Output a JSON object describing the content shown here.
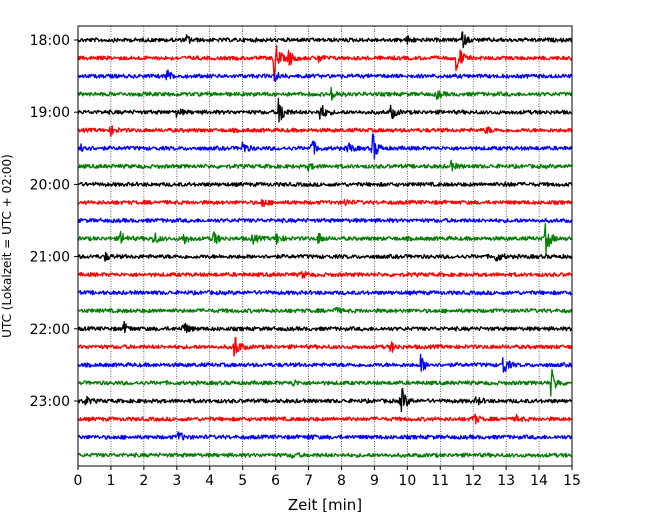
{
  "chart_data": {
    "type": "line",
    "title": "",
    "xlabel": "Zeit  [min]",
    "ylabel": "UTC (Lokalzeit = UTC + 02:00)",
    "xlim": [
      0,
      15
    ],
    "x_ticks": [
      "0",
      "1",
      "2",
      "3",
      "4",
      "5",
      "6",
      "7",
      "8",
      "9",
      "10",
      "11",
      "12",
      "13",
      "14",
      "15"
    ],
    "y_ticks": [
      "18:00",
      "19:00",
      "20:00",
      "21:00",
      "22:00",
      "23:00"
    ],
    "grid": "vertical-dotted",
    "trace_colors": [
      "#000000",
      "#ff0000",
      "#0000ff",
      "#008000"
    ],
    "traces": [
      {
        "start": "18:00",
        "color": "#000000",
        "events": [
          [
            3.3,
            0.4
          ],
          [
            10.0,
            0.35
          ],
          [
            11.65,
            0.8
          ]
        ]
      },
      {
        "start": "18:15",
        "color": "#ff0000",
        "events": [
          [
            5.95,
            2.2
          ],
          [
            6.4,
            0.8
          ],
          [
            11.5,
            1.8
          ],
          [
            7.3,
            0.4
          ]
        ]
      },
      {
        "start": "18:30",
        "color": "#0000ff",
        "events": [
          [
            2.7,
            0.6
          ],
          [
            6.0,
            0.4
          ]
        ]
      },
      {
        "start": "18:45",
        "color": "#008000",
        "events": [
          [
            7.7,
            0.6
          ],
          [
            10.9,
            0.4
          ]
        ]
      },
      {
        "start": "19:00",
        "color": "#000000",
        "events": [
          [
            6.1,
            1.6
          ],
          [
            7.35,
            1.0
          ],
          [
            9.5,
            0.7
          ],
          [
            3.0,
            0.4
          ]
        ]
      },
      {
        "start": "19:15",
        "color": "#ff0000",
        "events": [
          [
            1.0,
            0.4
          ],
          [
            12.4,
            0.3
          ]
        ]
      },
      {
        "start": "19:30",
        "color": "#0000ff",
        "events": [
          [
            0.1,
            0.6
          ],
          [
            5.0,
            0.6
          ],
          [
            7.1,
            0.8
          ],
          [
            8.2,
            0.6
          ],
          [
            8.95,
            1.4
          ]
        ]
      },
      {
        "start": "19:45",
        "color": "#008000",
        "events": [
          [
            11.3,
            0.5
          ],
          [
            7.0,
            0.3
          ]
        ]
      },
      {
        "start": "20:00",
        "color": "#000000",
        "events": [
          [
            13.0,
            0.2
          ]
        ]
      },
      {
        "start": "20:15",
        "color": "#ff0000",
        "events": [
          [
            5.6,
            0.4
          ],
          [
            8.1,
            0.3
          ]
        ]
      },
      {
        "start": "20:30",
        "color": "#0000ff",
        "events": []
      },
      {
        "start": "20:45",
        "color": "#008000",
        "events": [
          [
            1.3,
            0.6
          ],
          [
            2.3,
            0.6
          ],
          [
            3.2,
            0.6
          ],
          [
            4.1,
            0.8
          ],
          [
            5.3,
            0.5
          ],
          [
            6.0,
            0.6
          ],
          [
            7.3,
            0.5
          ],
          [
            14.2,
            1.5
          ]
        ]
      },
      {
        "start": "21:00",
        "color": "#000000",
        "events": [
          [
            0.8,
            0.4
          ],
          [
            12.7,
            0.5
          ]
        ]
      },
      {
        "start": "21:15",
        "color": "#ff0000",
        "events": [
          [
            6.8,
            0.3
          ]
        ]
      },
      {
        "start": "21:30",
        "color": "#0000ff",
        "events": []
      },
      {
        "start": "21:45",
        "color": "#008000",
        "events": [
          [
            7.8,
            0.3
          ]
        ]
      },
      {
        "start": "22:00",
        "color": "#000000",
        "events": [
          [
            1.4,
            0.5
          ],
          [
            3.2,
            0.7
          ]
        ]
      },
      {
        "start": "22:15",
        "color": "#ff0000",
        "events": [
          [
            4.75,
            1.3
          ],
          [
            9.5,
            0.5
          ]
        ]
      },
      {
        "start": "22:30",
        "color": "#0000ff",
        "events": [
          [
            10.4,
            0.9
          ],
          [
            12.9,
            1.1
          ]
        ]
      },
      {
        "start": "22:45",
        "color": "#008000",
        "events": [
          [
            6.5,
            0.3
          ],
          [
            14.35,
            1.6
          ]
        ]
      },
      {
        "start": "23:00",
        "color": "#000000",
        "events": [
          [
            0.2,
            0.5
          ],
          [
            9.8,
            1.6
          ],
          [
            12.1,
            0.4
          ]
        ]
      },
      {
        "start": "23:15",
        "color": "#ff0000",
        "events": [
          [
            12.0,
            0.6
          ],
          [
            13.3,
            0.3
          ]
        ]
      },
      {
        "start": "23:30",
        "color": "#0000ff",
        "events": [
          [
            3.05,
            0.5
          ],
          [
            7.0,
            0.2
          ]
        ]
      },
      {
        "start": "23:45",
        "color": "#008000",
        "events": [
          [
            6.5,
            0.2
          ]
        ]
      }
    ]
  }
}
